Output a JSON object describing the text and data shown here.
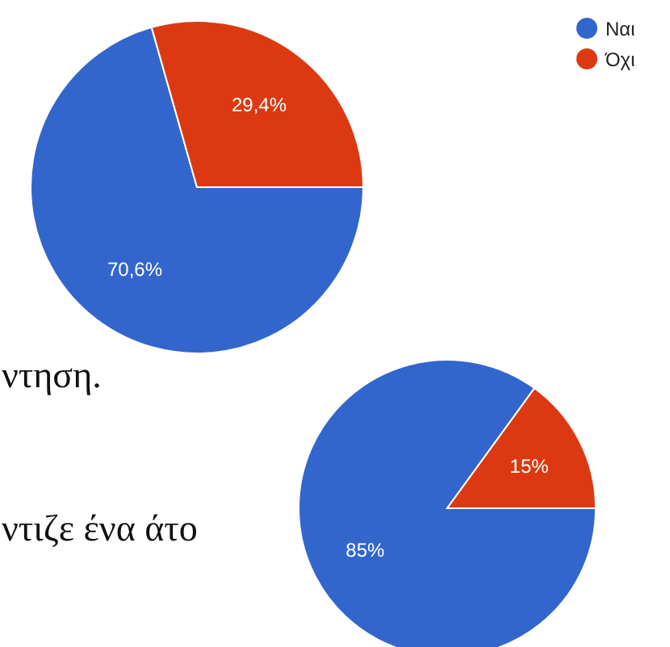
{
  "chart_data": [
    {
      "type": "pie",
      "categories": [
        "Ναι",
        "Όχι"
      ],
      "values": [
        70.6,
        29.4
      ],
      "colors": [
        "#3366cc",
        "#dc3912"
      ],
      "value_labels": [
        "70,6%",
        "29,4%"
      ],
      "legend": "top right"
    },
    {
      "type": "pie",
      "categories": [
        null,
        null
      ],
      "values": [
        85,
        15
      ],
      "colors": [
        "#3366cc",
        "#dc3912"
      ],
      "value_labels": [
        "85%",
        "15%"
      ],
      "annotations": [
        "ντηση.",
        "ντιζε ένα άτο"
      ]
    }
  ]
}
